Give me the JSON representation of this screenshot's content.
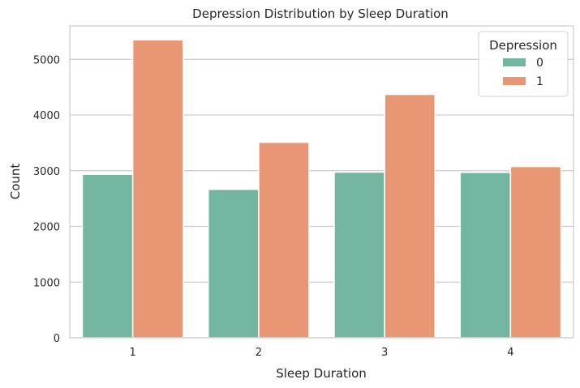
{
  "chart_data": {
    "type": "bar",
    "title": "Depression Distribution by Sleep Duration",
    "xlabel": "Sleep Duration",
    "ylabel": "Count",
    "categories": [
      "1",
      "2",
      "3",
      "4"
    ],
    "series": [
      {
        "name": "0",
        "color": "#72b6a1",
        "values": [
          2935,
          2665,
          2975,
          2970
        ]
      },
      {
        "name": "1",
        "color": "#e99675",
        "values": [
          5350,
          3510,
          4370,
          3075
        ]
      }
    ],
    "ylim": [
      0,
      5600
    ],
    "yticks": [
      0,
      1000,
      2000,
      3000,
      4000,
      5000
    ],
    "grid": "horizontal",
    "legend": {
      "title": "Depression",
      "placement": "top-right"
    }
  }
}
